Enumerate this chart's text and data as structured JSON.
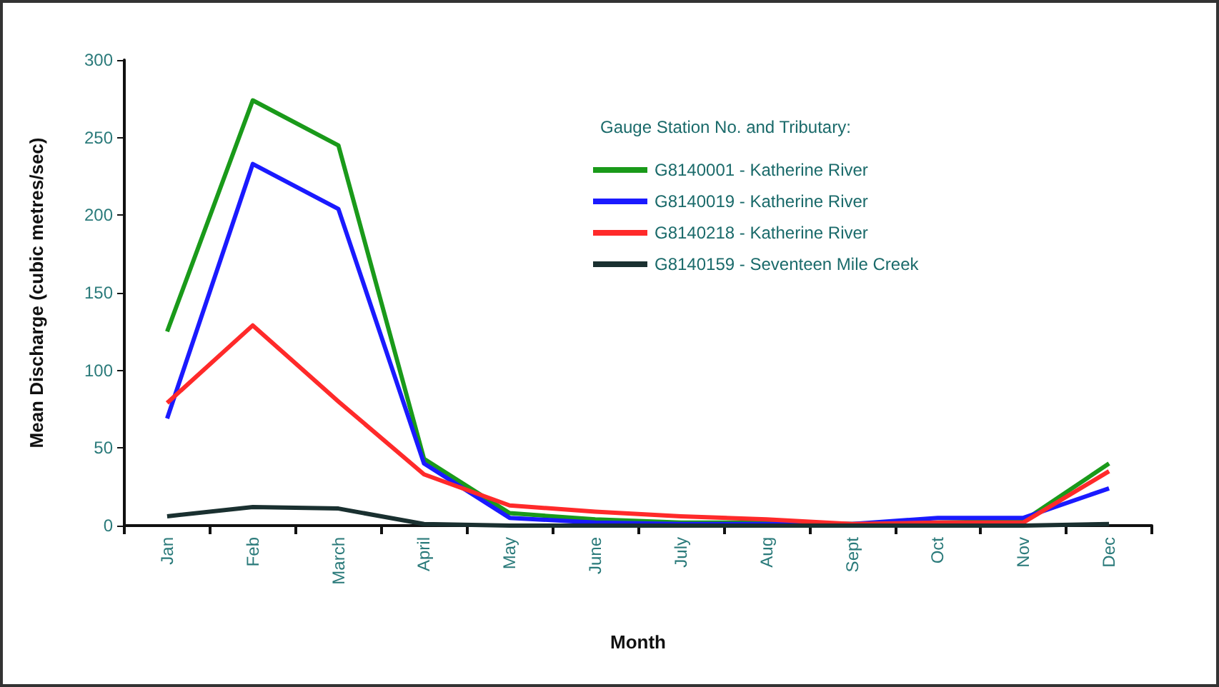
{
  "chart_data": {
    "type": "line",
    "xlabel": "Month",
    "ylabel": "Mean Discharge (cubic metres/sec)",
    "legend_title": "Gauge Station No. and Tributary:",
    "categories": [
      "Jan",
      "Feb",
      "March",
      "April",
      "May",
      "June",
      "July",
      "Aug",
      "Sept",
      "Oct",
      "Nov",
      "Dec"
    ],
    "series": [
      {
        "name": "G8140001 - Katherine River",
        "color": "#1a9a1a",
        "values": [
          125,
          274,
          245,
          43,
          8,
          4,
          2,
          2,
          1,
          2,
          3,
          40
        ]
      },
      {
        "name": "G8140019 - Katherine River",
        "color": "#1a1aff",
        "values": [
          69,
          233,
          204,
          40,
          5,
          2,
          1,
          1,
          1,
          5,
          5,
          24
        ]
      },
      {
        "name": "G8140218 - Katherine River",
        "color": "#ff2a2a",
        "values": [
          79,
          129,
          80,
          33,
          13,
          9,
          6,
          4,
          1,
          2,
          2,
          35
        ]
      },
      {
        "name": "G8140159 - Seventeen Mile Creek",
        "color": "#1a3030",
        "values": [
          6,
          12,
          11,
          1,
          0,
          0,
          0,
          0,
          0,
          0,
          0,
          1
        ]
      }
    ],
    "ylim": [
      0,
      300
    ],
    "yticks": [
      0,
      50,
      100,
      150,
      200,
      250,
      300
    ],
    "grid": false,
    "legend": "top right",
    "marker": "none",
    "line_style": "solid"
  }
}
